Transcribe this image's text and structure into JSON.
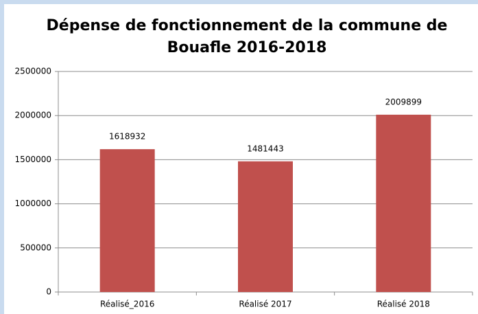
{
  "chart_data": {
    "type": "bar",
    "title": "Dépense de fonctionnement de la commune de Bouafle 2016-2018",
    "categories": [
      "Réalisé_2016",
      "Réalisé 2017",
      "Réalisé 2018"
    ],
    "values": [
      1618932,
      1481443,
      2009899
    ],
    "color": "#c0504d",
    "ylim": [
      0,
      2500000
    ],
    "yticks": [
      0,
      500000,
      1000000,
      1500000,
      2000000,
      2500000
    ],
    "grid": true
  }
}
